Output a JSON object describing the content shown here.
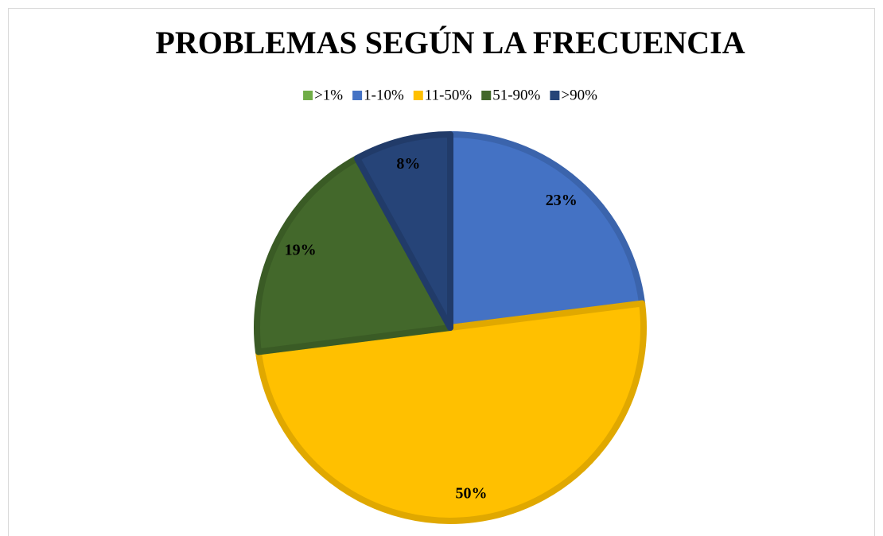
{
  "chart_data": {
    "type": "pie",
    "title": "PROBLEMAS SEGÚN LA FRECUENCIA",
    "categories": [
      ">1%",
      "1-10%",
      "11-50%",
      "51-90%",
      ">90%"
    ],
    "values": [
      0,
      23,
      50,
      19,
      8
    ],
    "value_labels": [
      null,
      "23%",
      "50%",
      "19%",
      "8%"
    ],
    "colors": [
      "#70ad47",
      "#4472c4",
      "#ffc000",
      "#43682b",
      "#264478"
    ],
    "legend": "top"
  }
}
